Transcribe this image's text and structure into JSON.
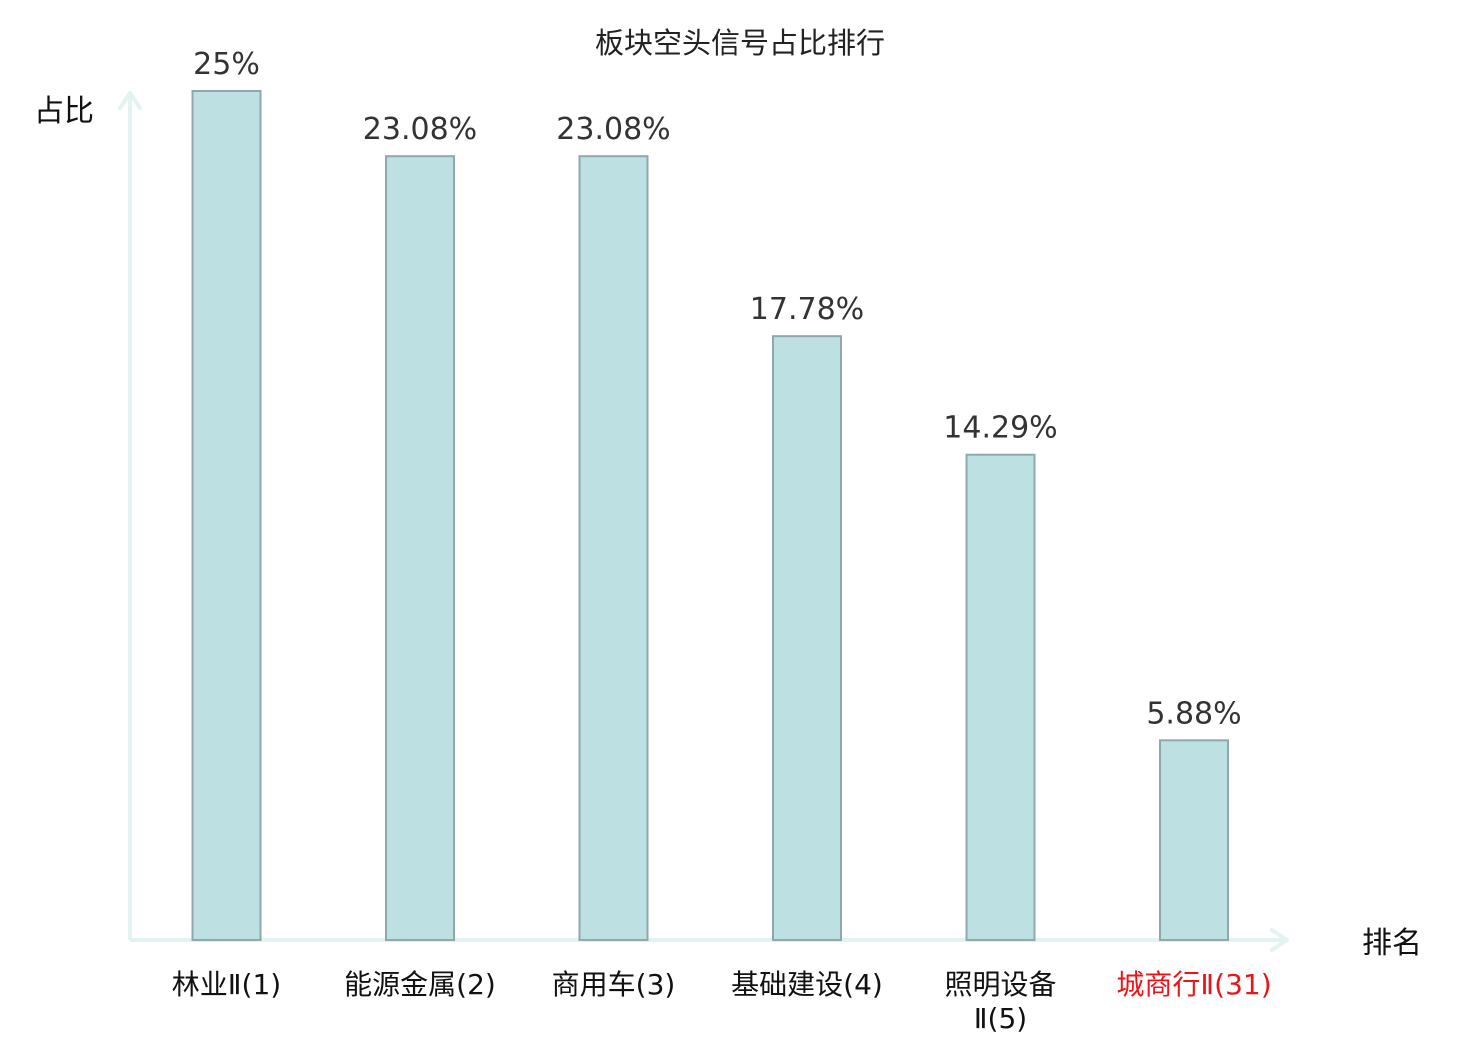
{
  "chart_data": {
    "type": "bar",
    "title": "板块空头信号占比排行",
    "xlabel": "排名",
    "ylabel": "占比",
    "categories": [
      "林业Ⅱ(1)",
      "能源金属(2)",
      "商用车(3)",
      "基础建设(4)",
      "照明设备Ⅱ(5)",
      "城商行Ⅱ(31)"
    ],
    "category_lines": [
      [
        "林业Ⅱ(1)"
      ],
      [
        "能源金属(2)"
      ],
      [
        "商用车(3)"
      ],
      [
        "基础建设(4)"
      ],
      [
        "照明设备",
        "Ⅱ(5)"
      ],
      [
        "城商行Ⅱ(31)"
      ]
    ],
    "values": [
      25,
      23.08,
      23.08,
      17.78,
      14.29,
      5.88
    ],
    "value_labels": [
      "25%",
      "23.08%",
      "23.08%",
      "17.78%",
      "14.29%",
      "5.88%"
    ],
    "category_colors": [
      "#111111",
      "#111111",
      "#111111",
      "#111111",
      "#111111",
      "#e8161b"
    ],
    "ylim": [
      0,
      25
    ],
    "grid": false,
    "legend": "none",
    "colors": {
      "bar_fill": "#bde0e3",
      "bar_stroke": "#8ea8ab",
      "axis": "#e3f3f1",
      "highlight_label": "#e8161b"
    }
  }
}
